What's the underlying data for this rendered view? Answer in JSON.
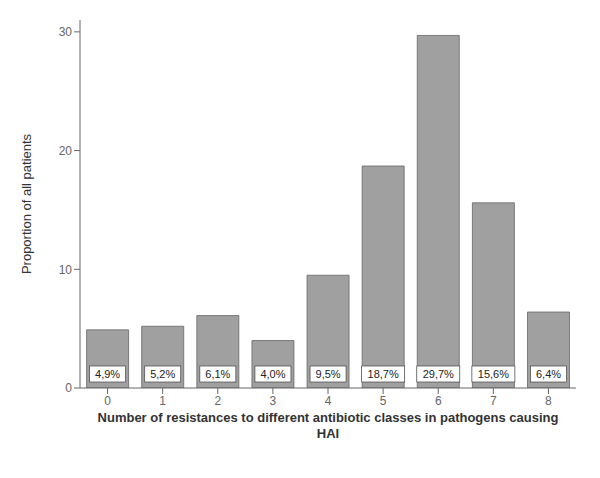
{
  "chart_data": {
    "type": "bar",
    "categories": [
      0,
      1,
      2,
      3,
      4,
      5,
      6,
      7,
      8
    ],
    "values": [
      4.9,
      5.2,
      6.1,
      4.0,
      9.5,
      18.7,
      29.7,
      15.6,
      6.4
    ],
    "value_labels": [
      "4,9%",
      "5,2%",
      "6,1%",
      "4,0%",
      "9,5%",
      "18,7%",
      "29,7%",
      "15,6%",
      "6,4%"
    ],
    "data_labels": true,
    "color": "#a0a0a0",
    "xlabel": "Number of resistances to different antibiotic classes in pathogens causing\nHAI",
    "ylabel": "Proportion of all patients",
    "ylim": [
      0,
      31
    ],
    "yticks": [
      0,
      10,
      20,
      30
    ],
    "grid": false
  }
}
